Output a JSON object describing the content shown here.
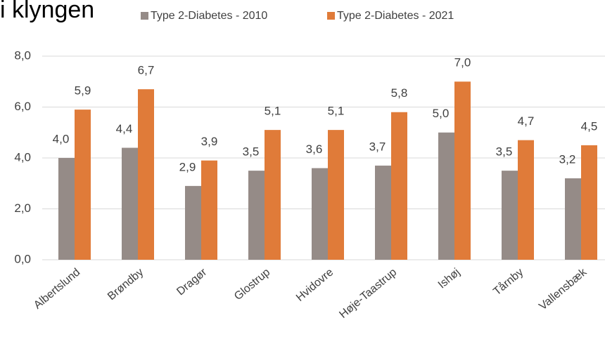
{
  "chart_data": {
    "type": "bar",
    "title": "i klyngen",
    "categories": [
      "Albertslund",
      "Brøndby",
      "Dragør",
      "Glostrup",
      "Hvidovre",
      "Høje-Taastrup",
      "Ishøj",
      "Tårnby",
      "Vallensbæk"
    ],
    "series": [
      {
        "name": "Type 2-Diabetes - 2010",
        "color": "#958b87",
        "values": [
          4.0,
          4.4,
          2.9,
          3.5,
          3.6,
          3.7,
          5.0,
          3.5,
          3.2
        ],
        "value_labels": [
          "4,0",
          "4,4",
          "2,9",
          "3,5",
          "3,6",
          "3,7",
          "5,0",
          "3,5",
          "3,2"
        ]
      },
      {
        "name": "Type 2-Diabetes - 2021",
        "color": "#e07b39",
        "values": [
          5.9,
          6.7,
          3.9,
          5.1,
          5.1,
          5.8,
          7.0,
          4.7,
          4.5
        ],
        "value_labels": [
          "5,9",
          "6,7",
          "3,9",
          "5,1",
          "5,1",
          "5,8",
          "7,0",
          "4,7",
          "4,5"
        ]
      }
    ],
    "ylim": [
      0,
      8
    ],
    "yticks": [
      {
        "value": 0,
        "label": "0,0"
      },
      {
        "value": 2,
        "label": "2,0"
      },
      {
        "value": 4,
        "label": "4,0"
      },
      {
        "value": 6,
        "label": "6,0"
      },
      {
        "value": 8,
        "label": "8,0"
      }
    ],
    "grid": true,
    "legend": "top"
  }
}
